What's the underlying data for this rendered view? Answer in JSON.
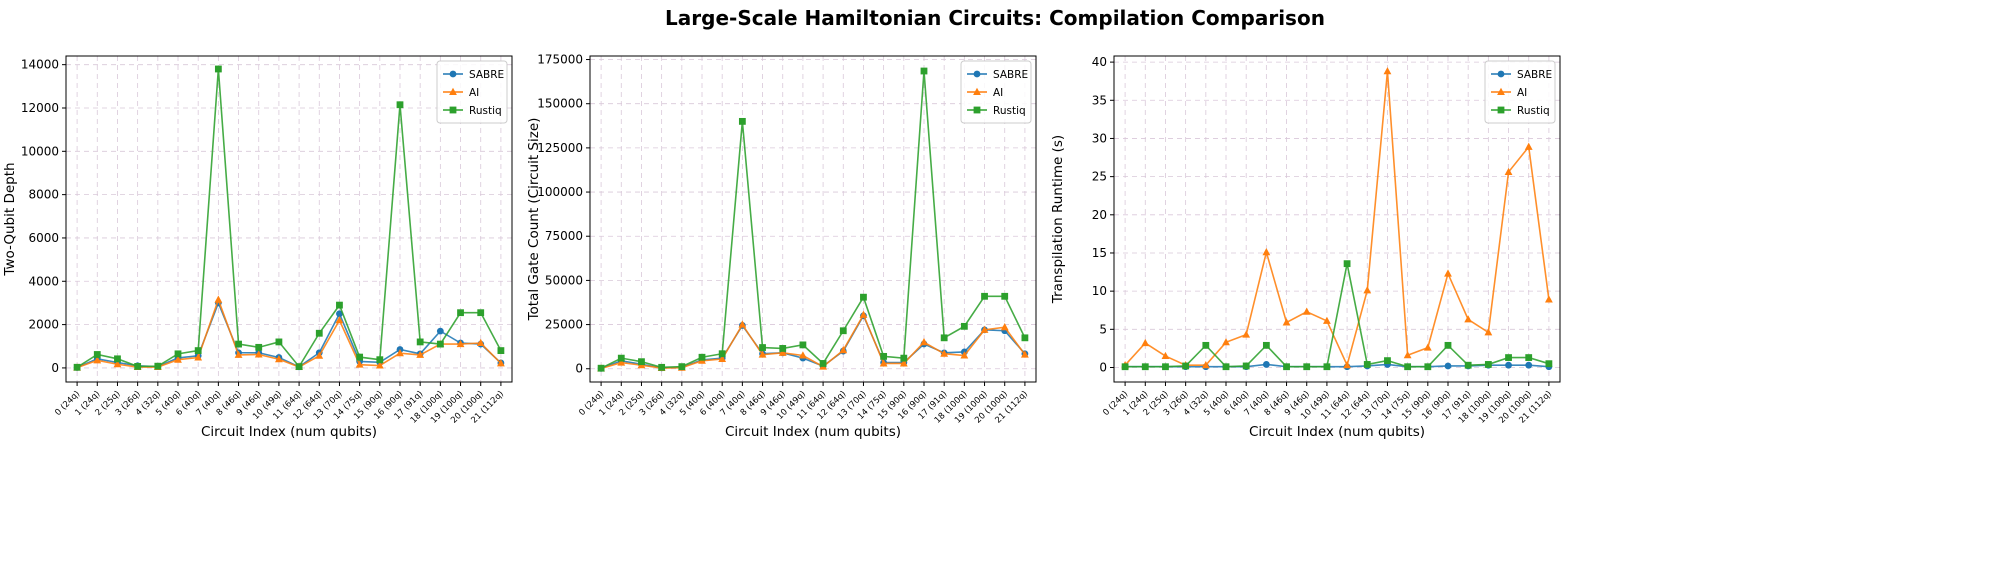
{
  "figure": {
    "title": "Large-Scale Hamiltonian Circuits: Compilation Comparison"
  },
  "chart_data": [
    {
      "type": "line",
      "title": "",
      "xlabel": "Circuit Index (num qubits)",
      "ylabel": "Two-Qubit Depth",
      "categories": [
        "0 (24q)",
        "1 (24q)",
        "2 (25q)",
        "3 (26q)",
        "4 (32q)",
        "5 (40q)",
        "6 (40q)",
        "7 (40q)",
        "8 (46q)",
        "9 (46q)",
        "10 (49q)",
        "11 (64q)",
        "12 (64q)",
        "13 (70q)",
        "14 (75q)",
        "15 (90q)",
        "16 (90q)",
        "17 (91q)",
        "18 (100q)",
        "19 (100q)",
        "20 (100q)",
        "21 (112q)"
      ],
      "ylim": [
        -650,
        14400
      ],
      "yticks": [
        0,
        2000,
        4000,
        6000,
        8000,
        10000,
        12000,
        14000
      ],
      "grid": true,
      "legend": "top-right",
      "series": [
        {
          "name": "SABRE",
          "color": "#1f77b4",
          "marker": "circle",
          "values": [
            20,
            420,
            250,
            100,
            60,
            460,
            560,
            3000,
            700,
            700,
            480,
            50,
            700,
            2500,
            300,
            260,
            850,
            650,
            1700,
            1150,
            1100,
            230
          ]
        },
        {
          "name": "AI",
          "color": "#ff7f0e",
          "marker": "triangle",
          "values": [
            15,
            350,
            170,
            40,
            40,
            380,
            480,
            3150,
            600,
            620,
            400,
            40,
            560,
            2200,
            150,
            110,
            680,
            600,
            1100,
            1100,
            1150,
            210
          ]
        },
        {
          "name": "Rustiq",
          "color": "#2ca02c",
          "marker": "square",
          "values": [
            30,
            620,
            420,
            70,
            80,
            650,
            800,
            13800,
            1100,
            950,
            1200,
            60,
            1600,
            2900,
            500,
            380,
            12150,
            1200,
            1100,
            2550,
            2550,
            800
          ]
        }
      ]
    },
    {
      "type": "line",
      "title": "",
      "xlabel": "Circuit Index (num qubits)",
      "ylabel": "Total Gate Count (Circuit Size)",
      "categories": [
        "0 (24q)",
        "1 (24q)",
        "2 (25q)",
        "3 (26q)",
        "4 (32q)",
        "5 (40q)",
        "6 (40q)",
        "7 (40q)",
        "8 (46q)",
        "9 (46q)",
        "10 (49q)",
        "11 (64q)",
        "12 (64q)",
        "13 (70q)",
        "14 (75q)",
        "15 (90q)",
        "16 (90q)",
        "17 (91q)",
        "18 (100q)",
        "19 (100q)",
        "20 (100q)",
        "21 (112q)"
      ],
      "ylim": [
        -7500,
        177000
      ],
      "yticks": [
        0,
        25000,
        50000,
        75000,
        100000,
        125000,
        150000,
        175000
      ],
      "grid": true,
      "legend": "top-right",
      "series": [
        {
          "name": "SABRE",
          "color": "#1f77b4",
          "marker": "circle",
          "values": [
            200,
            4500,
            2500,
            500,
            800,
            5000,
            6000,
            24500,
            8500,
            9000,
            6000,
            1500,
            10000,
            30000,
            3500,
            3500,
            14000,
            9000,
            9500,
            22000,
            21500,
            8500
          ]
        },
        {
          "name": "AI",
          "color": "#ff7f0e",
          "marker": "triangle",
          "values": [
            150,
            3500,
            2000,
            400,
            600,
            4500,
            5500,
            25000,
            8000,
            9000,
            7500,
            1200,
            10500,
            30500,
            3000,
            3000,
            15000,
            8500,
            7500,
            22000,
            23500,
            8000
          ]
        },
        {
          "name": "Rustiq",
          "color": "#2ca02c",
          "marker": "square",
          "values": [
            300,
            6000,
            4000,
            800,
            1200,
            6500,
            8500,
            140000,
            12000,
            11500,
            13500,
            3000,
            21500,
            40500,
            7000,
            6000,
            168500,
            17500,
            24000,
            41000,
            41000,
            17500
          ]
        }
      ]
    },
    {
      "type": "line",
      "title": "",
      "xlabel": "Circuit Index (num qubits)",
      "ylabel": "Transpilation Runtime (s)",
      "categories": [
        "0 (24q)",
        "1 (24q)",
        "2 (25q)",
        "3 (26q)",
        "4 (32q)",
        "5 (40q)",
        "6 (40q)",
        "7 (40q)",
        "8 (46q)",
        "9 (46q)",
        "10 (49q)",
        "11 (64q)",
        "12 (64q)",
        "13 (70q)",
        "14 (75q)",
        "15 (90q)",
        "16 (90q)",
        "17 (91q)",
        "18 (100q)",
        "19 (100q)",
        "20 (100q)",
        "21 (112q)"
      ],
      "ylim": [
        -1.9,
        40.8
      ],
      "yticks": [
        0,
        5,
        10,
        15,
        20,
        25,
        30,
        35,
        40
      ],
      "grid": true,
      "legend": "top-right",
      "series": [
        {
          "name": "SABRE",
          "color": "#1f77b4",
          "marker": "circle",
          "values": [
            0.1,
            0.1,
            0.1,
            0.1,
            0.1,
            0.1,
            0.1,
            0.4,
            0.1,
            0.1,
            0.1,
            0.1,
            0.2,
            0.4,
            0.1,
            0.1,
            0.2,
            0.2,
            0.3,
            0.3,
            0.3,
            0.1
          ]
        },
        {
          "name": "AI",
          "color": "#ff7f0e",
          "marker": "triangle",
          "values": [
            0.3,
            3.2,
            1.5,
            0.3,
            0.3,
            3.3,
            4.3,
            15.1,
            5.9,
            7.3,
            6.1,
            0.3,
            10.1,
            38.8,
            1.6,
            2.6,
            12.3,
            6.3,
            4.6,
            25.6,
            28.9,
            8.9
          ]
        },
        {
          "name": "Rustiq",
          "color": "#2ca02c",
          "marker": "square",
          "values": [
            0.1,
            0.1,
            0.1,
            0.2,
            2.9,
            0.1,
            0.2,
            2.9,
            0.1,
            0.1,
            0.1,
            13.6,
            0.4,
            0.9,
            0.1,
            0.1,
            2.9,
            0.3,
            0.4,
            1.3,
            1.3,
            0.5
          ]
        }
      ]
    }
  ]
}
